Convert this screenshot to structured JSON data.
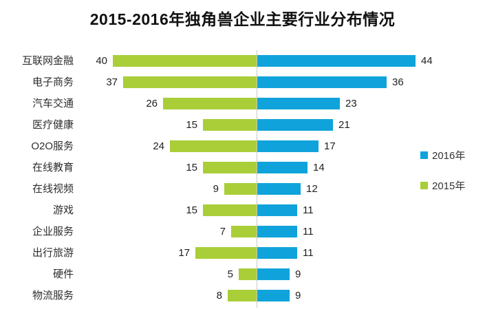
{
  "title": "2015-2016年独角兽企业主要行业分布情况",
  "colors": {
    "blue_2016": "#10a3db",
    "green_2015": "#a9ce38",
    "axis_line": "#c8c8c8",
    "text": "#1e1e1e"
  },
  "legend": {
    "items": [
      {
        "label": "2016年",
        "color": "#10a3db"
      },
      {
        "label": "2015年",
        "color": "#a9ce38"
      }
    ],
    "position": "right-middle"
  },
  "chart_data": {
    "type": "bar",
    "subtype": "diverging-horizontal",
    "title": "2015-2016年独角兽企业主要行业分布情况",
    "xlabel": "",
    "ylabel": "",
    "grid": false,
    "legend_position": "right-middle",
    "value_axis_max": 44,
    "categories": [
      "互联网金融",
      "电子商务",
      "汽车交通",
      "医疗健康",
      "O2O服务",
      "在线教育",
      "在线视频",
      "游戏",
      "企业服务",
      "出行旅游",
      "硬件",
      "物流服务"
    ],
    "series": [
      {
        "name": "2015年",
        "side": "left",
        "color": "#a9ce38",
        "values": [
          40,
          37,
          26,
          15,
          24,
          15,
          9,
          15,
          7,
          17,
          5,
          8
        ]
      },
      {
        "name": "2016年",
        "side": "right",
        "color": "#10a3db",
        "values": [
          44,
          36,
          23,
          21,
          17,
          14,
          12,
          11,
          11,
          11,
          9,
          9
        ]
      }
    ]
  }
}
